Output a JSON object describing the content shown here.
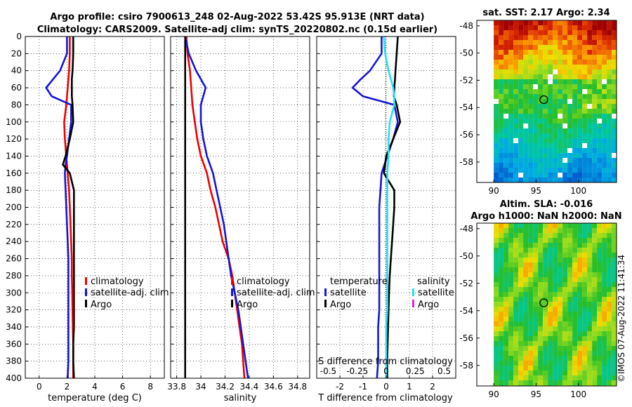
{
  "title": {
    "line1": "Argo profile: csiro 7900613_248 02-Aug-2022 53.42S 95.913E (NRT data)",
    "line2": "Climatology: CARS2009. Satellite-adj clim: synTS_20220802.nc (0.15d earlier)"
  },
  "colors": {
    "climatology": "#ee0000",
    "satellite": "#1515d6",
    "argo": "#000000",
    "sat_salinity": "#22e2f0",
    "argo_salinity": "#e020e0"
  },
  "chart_data": [
    {
      "type": "line",
      "name": "temperature-panel",
      "xlabel": "temperature (deg C)",
      "xlim": [
        -1,
        9
      ],
      "ylim": [
        0,
        400
      ],
      "xticks": [
        "0",
        "2",
        "4",
        "6",
        "8"
      ],
      "xtick_values": [
        0,
        2,
        4,
        6,
        8
      ],
      "yticks": [
        "0",
        "20",
        "40",
        "60",
        "80",
        "100",
        "120",
        "140",
        "160",
        "180",
        "200",
        "220",
        "240",
        "260",
        "280",
        "300",
        "320",
        "340",
        "360",
        "380",
        "400"
      ],
      "depth": [
        0,
        20,
        40,
        50,
        60,
        70,
        80,
        100,
        120,
        140,
        150,
        160,
        180,
        200,
        220,
        240,
        260,
        280,
        300,
        320,
        340,
        360,
        380,
        400
      ],
      "series": [
        {
          "name": "climatology",
          "values": [
            2.2,
            2.2,
            2.15,
            2.1,
            2.05,
            2.0,
            1.95,
            1.8,
            1.85,
            1.95,
            2.0,
            2.05,
            2.15,
            2.2,
            2.25,
            2.3,
            2.35,
            2.35,
            2.38,
            2.4,
            2.42,
            2.45,
            2.45,
            2.45
          ]
        },
        {
          "name": "satellite-adj. clim",
          "values": [
            2.0,
            2.0,
            1.5,
            1.0,
            0.5,
            0.9,
            2.3,
            2.3,
            2.15,
            2.0,
            1.9,
            1.85,
            1.9,
            1.95,
            2.0,
            2.05,
            2.1,
            2.1,
            2.1,
            2.1,
            2.1,
            2.1,
            2.1,
            2.05
          ]
        },
        {
          "name": "Argo",
          "values": [
            2.45,
            2.45,
            2.4,
            2.35,
            2.35,
            2.35,
            2.4,
            2.45,
            2.2,
            1.9,
            1.7,
            2.2,
            2.5,
            2.5,
            2.5,
            2.5,
            2.5,
            2.5,
            2.5,
            2.5,
            2.5,
            2.45,
            2.45,
            2.5
          ]
        }
      ],
      "legend": [
        "climatology",
        "satellite-adj. clim",
        "Argo"
      ]
    },
    {
      "type": "line",
      "name": "salinity-panel",
      "xlabel": "salinity",
      "xlim": [
        33.75,
        34.9
      ],
      "ylim": [
        0,
        400
      ],
      "xticks": [
        "33.8",
        "34",
        "34.2",
        "34.4",
        "34.6",
        "34.8"
      ],
      "xtick_values": [
        33.8,
        34.0,
        34.2,
        34.4,
        34.6,
        34.8
      ],
      "depth": [
        0,
        20,
        40,
        60,
        80,
        100,
        120,
        140,
        160,
        180,
        200,
        220,
        240,
        260,
        280,
        300,
        320,
        340,
        360,
        380,
        400
      ],
      "series": [
        {
          "name": "climatology",
          "values": [
            33.88,
            33.89,
            33.91,
            33.92,
            33.93,
            33.95,
            33.97,
            34.0,
            34.05,
            34.08,
            34.12,
            34.15,
            34.18,
            34.23,
            34.26,
            34.28,
            34.3,
            34.32,
            34.34,
            34.35,
            34.36
          ]
        },
        {
          "name": "satellite-adj. clim",
          "values": [
            33.87,
            33.9,
            33.96,
            34.04,
            34.0,
            34.0,
            34.02,
            34.05,
            34.1,
            34.13,
            34.16,
            34.19,
            34.21,
            34.23,
            34.25,
            34.28,
            34.31,
            34.33,
            34.35,
            34.37,
            34.39
          ]
        },
        {
          "name": "Argo",
          "values": [
            33.87,
            33.87,
            33.87,
            33.87,
            33.87,
            33.87,
            33.87,
            33.87,
            33.87,
            33.87,
            33.87,
            33.87,
            33.87,
            33.87,
            33.87,
            33.87,
            33.87,
            33.87,
            33.87,
            33.87,
            33.87
          ]
        }
      ],
      "legend": [
        "climatology",
        "satellite-adj. clim",
        "Argo"
      ]
    },
    {
      "type": "line",
      "name": "difference-panel",
      "xlabel": "T difference from climatology",
      "top_label": "S difference from climatology",
      "xlim": [
        -3,
        3
      ],
      "ylim": [
        0,
        400
      ],
      "xticks": [
        "-2",
        "-1",
        "0",
        "1",
        "2"
      ],
      "xtick_values": [
        -2,
        -1,
        0,
        1,
        2
      ],
      "top_ticks": [
        "-0.5",
        "-0.25",
        "0",
        "0.25",
        "0.5"
      ],
      "top_tick_values": [
        -0.5,
        -0.25,
        0,
        0.25,
        0.5
      ],
      "depth": [
        0,
        20,
        40,
        50,
        60,
        70,
        80,
        100,
        120,
        140,
        160,
        180,
        200,
        220,
        240,
        260,
        280,
        300,
        320,
        340,
        360,
        380,
        400
      ],
      "series": [
        {
          "name": "T satellite",
          "values": [
            -0.2,
            -0.2,
            -0.7,
            -1.1,
            -1.45,
            -1.0,
            0.35,
            0.5,
            0.3,
            0.05,
            -0.2,
            -0.25,
            -0.3,
            -0.3,
            -0.3,
            -0.3,
            -0.3,
            -0.3,
            -0.3,
            -0.35,
            -0.35,
            -0.35,
            -0.4
          ]
        },
        {
          "name": "T Argo",
          "values": [
            0.5,
            0.45,
            0.4,
            0.38,
            0.35,
            0.33,
            0.45,
            0.6,
            0.3,
            0.0,
            -0.1,
            0.35,
            0.35,
            0.3,
            0.25,
            0.2,
            0.15,
            0.12,
            0.1,
            0.08,
            0.06,
            0.04,
            0.05
          ]
        },
        {
          "name": "S satellite",
          "values": [
            -0.02,
            -0.01,
            0.02,
            0.04,
            0.06,
            0.07,
            0.07,
            0.03,
            0.02,
            0.02,
            0.01,
            0.01,
            0.01,
            0.01,
            0.01,
            0.01,
            0.01,
            0.01,
            0.01,
            0.0,
            0.0,
            0.0,
            0.0
          ]
        }
      ],
      "legend": {
        "temperature_title": "temperature",
        "salinity_title": "salinity",
        "temperature": [
          "satellite",
          "Argo"
        ],
        "salinity": [
          "satellite",
          "Argo"
        ]
      }
    },
    {
      "type": "heatmap",
      "name": "sst-map",
      "title": "sat. SST: 2.17 Argo: 2.34",
      "xlim": [
        88,
        104.5
      ],
      "ylim": [
        -59.5,
        -47.6
      ],
      "xticks": [
        "90",
        "95",
        "100"
      ],
      "xtick_values": [
        90,
        95,
        100
      ],
      "yticks": [
        "-48",
        "-50",
        "-52",
        "-54",
        "-56",
        "-58"
      ],
      "ytick_values": [
        -48,
        -50,
        -52,
        -54,
        -56,
        -58
      ],
      "marker": {
        "lon": 95.913,
        "lat": -53.42
      }
    },
    {
      "type": "heatmap",
      "name": "sla-map",
      "title": "Altim. SLA: -0.016",
      "subtitle": "Argo h1000: NaN h2000: NaN",
      "xlim": [
        88,
        104.5
      ],
      "ylim": [
        -59.5,
        -47.6
      ],
      "xticks": [
        "90",
        "95",
        "100"
      ],
      "xtick_values": [
        90,
        95,
        100
      ],
      "yticks": [
        "-48",
        "-50",
        "-52",
        "-54",
        "-56",
        "-58"
      ],
      "ytick_values": [
        -48,
        -50,
        -52,
        -54,
        -56,
        -58
      ],
      "marker": {
        "lon": 95.913,
        "lat": -53.42
      }
    }
  ],
  "credit": "©IMOS 07-Aug-2022 11:41:34"
}
